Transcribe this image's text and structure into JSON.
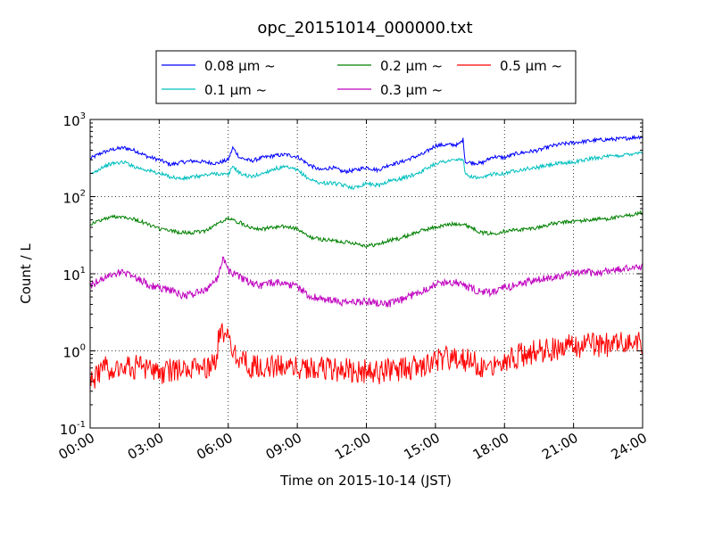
{
  "chart_data": {
    "type": "line",
    "title": "opc_20151014_000000.txt",
    "xlabel": "Time on 2015-10-14 (JST)",
    "ylabel": "Count / L",
    "yscale": "log",
    "ylim": [
      0.1,
      1000
    ],
    "xlim": [
      "00:00",
      "24:00"
    ],
    "x_ticks": [
      "00:00",
      "03:00",
      "06:00",
      "09:00",
      "12:00",
      "15:00",
      "18:00",
      "21:00",
      "24:00"
    ],
    "y_ticks": [
      {
        "base": "10",
        "exp": "-1"
      },
      {
        "base": "10",
        "exp": "0"
      },
      {
        "base": "10",
        "exp": "1"
      },
      {
        "base": "10",
        "exp": "2"
      },
      {
        "base": "10",
        "exp": "3"
      }
    ],
    "grid": true,
    "legend_position": "top-center, above plot",
    "series": [
      {
        "name": "0.08 μm ~",
        "color": "#0000ff",
        "points": [
          [
            0,
            310
          ],
          [
            0.5,
            370
          ],
          [
            1,
            410
          ],
          [
            1.5,
            430
          ],
          [
            2,
            390
          ],
          [
            2.5,
            330
          ],
          [
            3,
            300
          ],
          [
            3.5,
            260
          ],
          [
            4,
            280
          ],
          [
            4.5,
            290
          ],
          [
            5,
            280
          ],
          [
            5.5,
            270
          ],
          [
            6,
            300
          ],
          [
            6.2,
            430
          ],
          [
            6.5,
            320
          ],
          [
            7,
            290
          ],
          [
            7.5,
            320
          ],
          [
            8,
            340
          ],
          [
            8.5,
            350
          ],
          [
            9,
            330
          ],
          [
            9.5,
            260
          ],
          [
            10,
            220
          ],
          [
            10.5,
            240
          ],
          [
            11,
            210
          ],
          [
            11.5,
            220
          ],
          [
            12,
            240
          ],
          [
            12.5,
            220
          ],
          [
            13,
            260
          ],
          [
            13.5,
            280
          ],
          [
            14,
            320
          ],
          [
            14.5,
            360
          ],
          [
            15,
            460
          ],
          [
            15.5,
            470
          ],
          [
            16,
            470
          ],
          [
            16.2,
            550
          ],
          [
            16.3,
            280
          ],
          [
            17,
            270
          ],
          [
            17.5,
            330
          ],
          [
            18,
            320
          ],
          [
            18.5,
            360
          ],
          [
            19,
            380
          ],
          [
            19.5,
            400
          ],
          [
            20,
            450
          ],
          [
            20.5,
            480
          ],
          [
            21,
            500
          ],
          [
            21.5,
            520
          ],
          [
            22,
            540
          ],
          [
            22.5,
            550
          ],
          [
            23,
            560
          ],
          [
            23.5,
            580
          ],
          [
            24,
            600
          ]
        ]
      },
      {
        "name": "0.1 μm ~",
        "color": "#00bfbf",
        "points": [
          [
            0,
            190
          ],
          [
            0.5,
            240
          ],
          [
            1,
            270
          ],
          [
            1.5,
            280
          ],
          [
            2,
            240
          ],
          [
            2.5,
            220
          ],
          [
            3,
            200
          ],
          [
            3.5,
            180
          ],
          [
            4,
            170
          ],
          [
            4.5,
            180
          ],
          [
            5,
            190
          ],
          [
            5.5,
            200
          ],
          [
            6,
            190
          ],
          [
            6.2,
            250
          ],
          [
            6.5,
            200
          ],
          [
            7,
            180
          ],
          [
            7.5,
            200
          ],
          [
            8,
            230
          ],
          [
            8.5,
            240
          ],
          [
            9,
            220
          ],
          [
            9.5,
            170
          ],
          [
            10,
            150
          ],
          [
            10.5,
            150
          ],
          [
            11,
            140
          ],
          [
            11.5,
            130
          ],
          [
            12,
            150
          ],
          [
            12.5,
            140
          ],
          [
            13,
            160
          ],
          [
            13.5,
            170
          ],
          [
            14,
            190
          ],
          [
            14.5,
            220
          ],
          [
            15,
            270
          ],
          [
            15.5,
            290
          ],
          [
            16,
            300
          ],
          [
            16.2,
            310
          ],
          [
            16.3,
            190
          ],
          [
            17,
            170
          ],
          [
            17.5,
            200
          ],
          [
            18,
            200
          ],
          [
            18.5,
            220
          ],
          [
            19,
            230
          ],
          [
            19.5,
            240
          ],
          [
            20,
            260
          ],
          [
            20.5,
            270
          ],
          [
            21,
            280
          ],
          [
            21.5,
            300
          ],
          [
            22,
            320
          ],
          [
            22.5,
            330
          ],
          [
            23,
            340
          ],
          [
            23.5,
            360
          ],
          [
            24,
            380
          ]
        ]
      },
      {
        "name": "0.2 μm ~",
        "color": "#008000",
        "points": [
          [
            0,
            44
          ],
          [
            0.5,
            50
          ],
          [
            1,
            55
          ],
          [
            1.5,
            55
          ],
          [
            2,
            50
          ],
          [
            2.5,
            44
          ],
          [
            3,
            38
          ],
          [
            3.5,
            36
          ],
          [
            4,
            34
          ],
          [
            4.5,
            34
          ],
          [
            5,
            36
          ],
          [
            5.5,
            44
          ],
          [
            6,
            52
          ],
          [
            6.5,
            46
          ],
          [
            7,
            40
          ],
          [
            7.5,
            38
          ],
          [
            8,
            40
          ],
          [
            8.5,
            41
          ],
          [
            9,
            38
          ],
          [
            9.5,
            30
          ],
          [
            10,
            28
          ],
          [
            10.5,
            27
          ],
          [
            11,
            26
          ],
          [
            11.5,
            25
          ],
          [
            12,
            23
          ],
          [
            12.5,
            24
          ],
          [
            13,
            27
          ],
          [
            13.5,
            29
          ],
          [
            14,
            33
          ],
          [
            14.5,
            37
          ],
          [
            15,
            40
          ],
          [
            15.5,
            43
          ],
          [
            16,
            45
          ],
          [
            16.5,
            41
          ],
          [
            17,
            34
          ],
          [
            17.5,
            33
          ],
          [
            18,
            36
          ],
          [
            18.5,
            37
          ],
          [
            19,
            38
          ],
          [
            19.5,
            40
          ],
          [
            20,
            44
          ],
          [
            20.5,
            46
          ],
          [
            21,
            48
          ],
          [
            21.5,
            49
          ],
          [
            22,
            51
          ],
          [
            22.5,
            52
          ],
          [
            23,
            54
          ],
          [
            23.5,
            58
          ],
          [
            24,
            62
          ]
        ]
      },
      {
        "name": "0.3 μm ~",
        "color": "#bf00bf",
        "points": [
          [
            0,
            7
          ],
          [
            0.5,
            8.5
          ],
          [
            1,
            10
          ],
          [
            1.5,
            10.5
          ],
          [
            2,
            9
          ],
          [
            2.5,
            7.2
          ],
          [
            3,
            6.5
          ],
          [
            3.5,
            6.2
          ],
          [
            4,
            5.2
          ],
          [
            4.5,
            5.5
          ],
          [
            5,
            6.2
          ],
          [
            5.5,
            8.5
          ],
          [
            5.8,
            16
          ],
          [
            6,
            11
          ],
          [
            6.5,
            9
          ],
          [
            7,
            7.5
          ],
          [
            7.5,
            7
          ],
          [
            8,
            7.8
          ],
          [
            8.5,
            7.5
          ],
          [
            9,
            6.8
          ],
          [
            9.5,
            5.2
          ],
          [
            10,
            4.7
          ],
          [
            10.5,
            4.5
          ],
          [
            11,
            4.2
          ],
          [
            11.5,
            4.3
          ],
          [
            12,
            4.4
          ],
          [
            12.5,
            4.2
          ],
          [
            13,
            4.1
          ],
          [
            13.5,
            4.5
          ],
          [
            14,
            5.3
          ],
          [
            14.5,
            6.2
          ],
          [
            15,
            7.3
          ],
          [
            15.5,
            7.8
          ],
          [
            16,
            7.6
          ],
          [
            16.5,
            6.5
          ],
          [
            17,
            5.7
          ],
          [
            17.5,
            5.8
          ],
          [
            18,
            6.5
          ],
          [
            18.5,
            7.2
          ],
          [
            19,
            7.8
          ],
          [
            19.5,
            8.3
          ],
          [
            20,
            9
          ],
          [
            20.5,
            9.5
          ],
          [
            21,
            10
          ],
          [
            21.5,
            10.5
          ],
          [
            22,
            10.2
          ],
          [
            22.5,
            11
          ],
          [
            23,
            11.3
          ],
          [
            23.5,
            12
          ],
          [
            24,
            12.5
          ]
        ]
      },
      {
        "name": "0.5 μm ~",
        "color": "#ff0000",
        "points": [
          [
            0,
            0.4
          ],
          [
            0.5,
            0.58
          ],
          [
            1,
            0.62
          ],
          [
            1.5,
            0.64
          ],
          [
            2,
            0.62
          ],
          [
            2.5,
            0.55
          ],
          [
            3,
            0.52
          ],
          [
            3.5,
            0.55
          ],
          [
            4,
            0.58
          ],
          [
            4.5,
            0.55
          ],
          [
            5,
            0.6
          ],
          [
            5.5,
            0.75
          ],
          [
            5.6,
            1.7
          ],
          [
            5.9,
            1.5
          ],
          [
            6.2,
            1.1
          ],
          [
            6.5,
            0.8
          ],
          [
            7,
            0.62
          ],
          [
            7.5,
            0.6
          ],
          [
            8,
            0.62
          ],
          [
            8.5,
            0.65
          ],
          [
            9,
            0.62
          ],
          [
            9.5,
            0.6
          ],
          [
            10,
            0.6
          ],
          [
            10.5,
            0.58
          ],
          [
            11,
            0.57
          ],
          [
            11.5,
            0.55
          ],
          [
            12,
            0.55
          ],
          [
            12.5,
            0.53
          ],
          [
            13,
            0.55
          ],
          [
            13.5,
            0.57
          ],
          [
            14,
            0.6
          ],
          [
            14.5,
            0.65
          ],
          [
            15,
            0.75
          ],
          [
            15.5,
            0.8
          ],
          [
            16,
            0.82
          ],
          [
            16.5,
            0.72
          ],
          [
            17,
            0.65
          ],
          [
            17.5,
            0.7
          ],
          [
            18,
            0.78
          ],
          [
            18.5,
            0.85
          ],
          [
            19,
            0.92
          ],
          [
            19.5,
            0.98
          ],
          [
            20,
            1.05
          ],
          [
            20.5,
            1.12
          ],
          [
            21,
            1.15
          ],
          [
            21.5,
            1.2
          ],
          [
            22,
            1.18
          ],
          [
            22.5,
            1.2
          ],
          [
            23,
            1.25
          ],
          [
            23.5,
            1.28
          ],
          [
            24,
            1.3
          ]
        ]
      }
    ]
  }
}
